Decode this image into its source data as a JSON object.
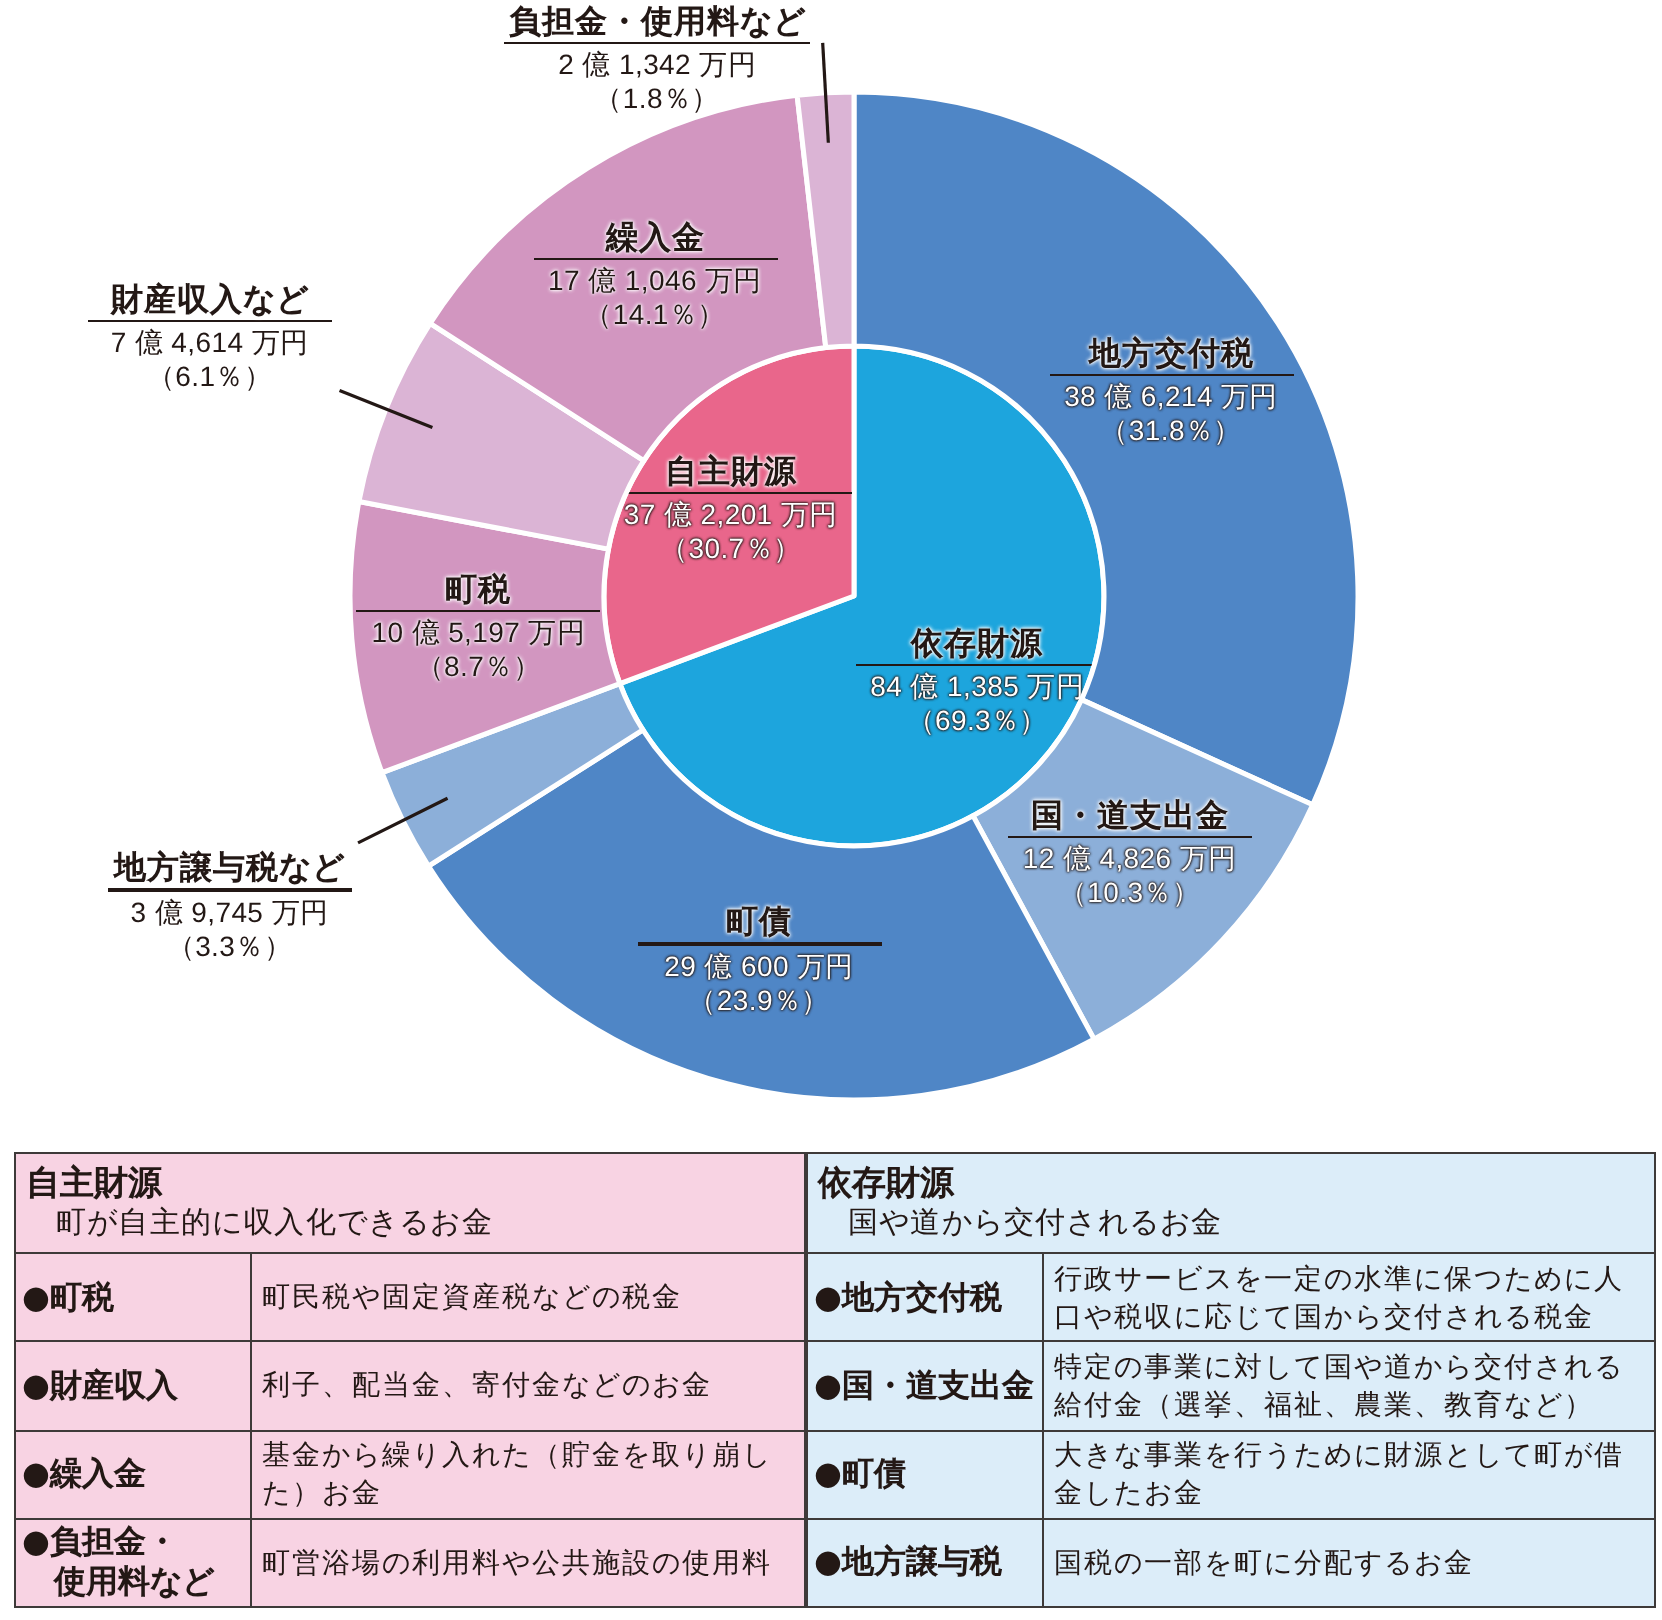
{
  "chart_data": [
    {
      "type": "pie",
      "categories": [
        "依存財源",
        "自主財源"
      ],
      "values": [
        69.3,
        30.7
      ],
      "colors": [
        "#1da5dd",
        "#e9668b"
      ],
      "value_labels": [
        "84 億 1,385 万円（69.3％）",
        "37 億 2,201 万円（30.7％）"
      ]
    },
    {
      "type": "donut",
      "categories": [
        "地方交付税",
        "国・道支出金",
        "町債",
        "地方譲与税など",
        "町税",
        "財産収入など",
        "繰入金",
        "負担金・使用料など"
      ],
      "values": [
        31.8,
        10.3,
        23.9,
        3.3,
        8.7,
        6.1,
        14.1,
        1.8
      ],
      "colors": [
        "#4f86c6",
        "#8cafd9",
        "#4f86c6",
        "#8cafd9",
        "#d296c0",
        "#dbb4d5",
        "#d296c0",
        "#dbb4d5"
      ],
      "value_labels": [
        "38 億 6,214 万円（31.8％）",
        "12 億 4,826 万円（10.3％）",
        "29 億 600 万円（23.9％）",
        "3 億 9,745 万円（3.3％）",
        "10 億 5,197 万円（8.7％）",
        "7 億 4,614 万円（6.1％）",
        "17 億 1,046 万円（14.1％）",
        "2 億 1,342 万円（1.8％）"
      ]
    },
    {
      "type": "other",
      "title": "自主財源",
      "subtitle": "町が自主的に収入化できるお金",
      "annotations": [
        "●町税",
        "町民税や固定資産税などの税金",
        "●財産収入",
        "利子、配当金、寄付金などのお金",
        "●繰入金",
        "基金から繰り入れた（貯金を取り崩した）お金",
        "●負担金・使用料など",
        "町営浴場の利用料や公共施設の使用料"
      ]
    },
    {
      "type": "other",
      "title": "依存財源",
      "subtitle": "国や道から交付されるお金",
      "annotations": [
        "●地方交付税",
        "行政サービスを一定の水準に保つために人口や税収に応じて国から交付される税金",
        "●国・道支出金",
        "特定の事業に対して国や道から交付される給付金（選挙、福祉、農業、教育など）",
        "●町債",
        "大きな事業を行うために財源として町が借金したお金",
        "●地方譲与税",
        "国税の一部を町に分配するお金"
      ]
    }
  ]
}
